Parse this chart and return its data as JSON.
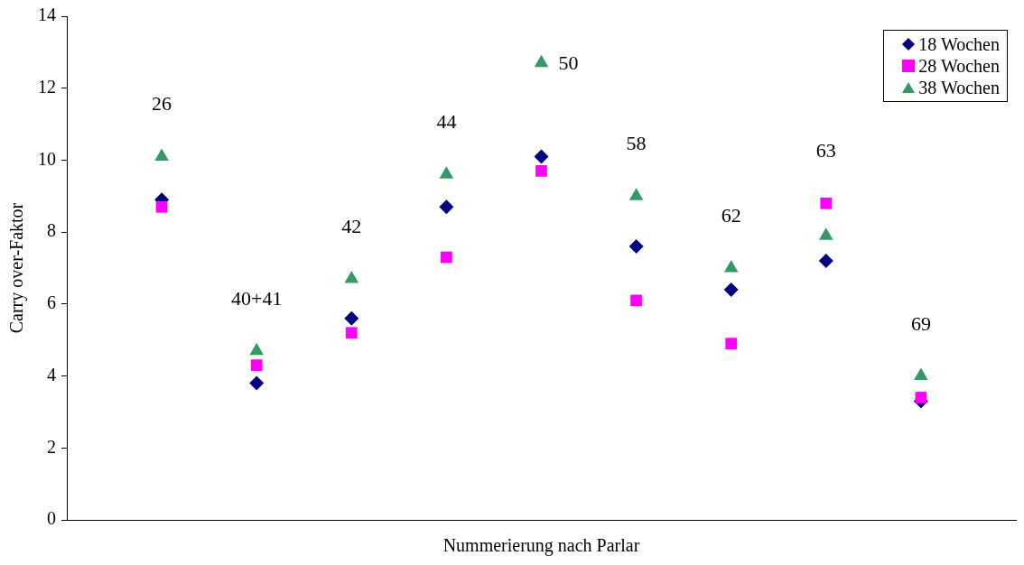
{
  "chart_data": {
    "type": "scatter",
    "xlabel": "Nummerierung nach Parlar",
    "ylabel": "Carry over-Faktor",
    "categories": [
      null,
      null,
      null,
      null,
      null,
      null,
      null,
      null,
      null
    ],
    "series": [
      {
        "name": "18 Wochen",
        "color": "#000080",
        "marker": "diamond",
        "values": [
          8.9,
          3.8,
          5.6,
          8.7,
          10.1,
          7.6,
          6.4,
          7.2,
          3.3
        ]
      },
      {
        "name": "28 Wochen",
        "color": "#ff00ff",
        "marker": "square",
        "values": [
          8.7,
          4.3,
          5.2,
          7.3,
          9.7,
          6.1,
          4.9,
          8.8,
          3.4
        ]
      },
      {
        "name": "38 Wochen",
        "color": "#339966",
        "marker": "triangle",
        "values": [
          10.1,
          4.7,
          6.7,
          9.6,
          12.7,
          9.0,
          7.0,
          7.9,
          4.0
        ]
      }
    ],
    "annotations": [
      "26",
      "40+41",
      "42",
      "44",
      "50",
      "58",
      "62",
      "63",
      "69"
    ],
    "ylim": [
      0,
      14
    ],
    "yticks": [
      0,
      2,
      4,
      6,
      8,
      10,
      12,
      14
    ],
    "grid": false,
    "legend": "top right",
    "tick_labels": "y"
  }
}
